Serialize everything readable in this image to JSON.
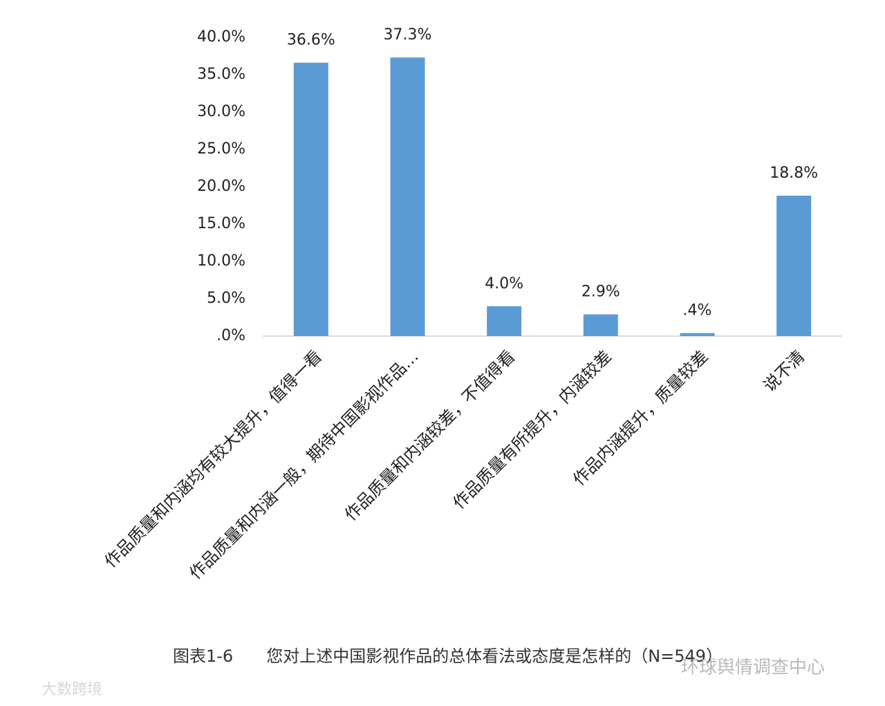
{
  "chart_data": {
    "type": "bar",
    "categories": [
      "作品质量和内涵均有较大提升，值得一看",
      "作品质量和内涵一般，期待中国影视作品…",
      "作品质量和内涵较差，不值得看",
      "作品质量有所提升，内涵较差",
      "作品内涵提升，质量较差",
      "说不清"
    ],
    "values": [
      36.6,
      37.3,
      4.0,
      2.9,
      0.4,
      18.8
    ],
    "value_labels": [
      "36.6%",
      "37.3%",
      "4.0%",
      "2.9%",
      ".4%",
      "18.8%"
    ],
    "color": "#5b9bd5",
    "ylim": [
      0,
      40
    ],
    "yticks": [
      {
        "value": 0,
        "label": ".0%"
      },
      {
        "value": 5,
        "label": "5.0%"
      },
      {
        "value": 10,
        "label": "10.0%"
      },
      {
        "value": 15,
        "label": "15.0%"
      },
      {
        "value": 20,
        "label": "20.0%"
      },
      {
        "value": 25,
        "label": "25.0%"
      },
      {
        "value": 30,
        "label": "30.0%"
      },
      {
        "value": 35,
        "label": "35.0%"
      },
      {
        "value": 40,
        "label": "40.0%"
      }
    ],
    "grid": false,
    "caption": "图表1-6　　您对上述中国影视作品的总体看法或态度是怎样的（N=549）"
  },
  "watermarks": [
    "环球舆情调查中心",
    "大数跨境"
  ]
}
